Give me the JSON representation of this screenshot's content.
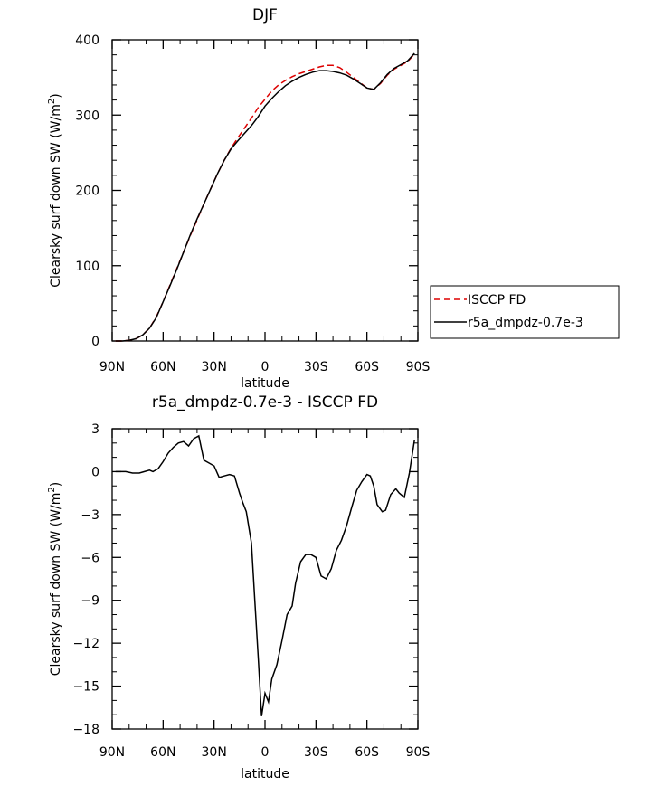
{
  "chart_data": [
    {
      "type": "line",
      "title": "DJF",
      "xlabel": "latitude",
      "ylabel": "Clearsky surf down SW (W/m",
      "ylabel_sup": "2",
      "ylabel_close": ")",
      "xlim": [
        90,
        -90
      ],
      "ylim": [
        0,
        400
      ],
      "xticks": [
        90,
        60,
        30,
        0,
        -30,
        -60,
        -90
      ],
      "xtick_labels": [
        "90N",
        "60N",
        "30N",
        "0",
        "30S",
        "60S",
        "90S"
      ],
      "yticks": [
        0,
        100,
        200,
        300,
        400
      ],
      "ytick_labels": [
        "0",
        "100",
        "200",
        "300",
        "400"
      ],
      "grid": false,
      "legend_position": "right",
      "series": [
        {
          "name": "ISCCP FD",
          "color": "#dd0000",
          "dash": "dashed",
          "x": [
            88,
            84,
            80,
            76,
            72,
            68,
            64,
            60,
            56,
            52,
            48,
            44,
            40,
            36,
            32,
            28,
            24,
            20,
            16,
            12,
            8,
            4,
            0,
            -4,
            -8,
            -12,
            -16,
            -20,
            -24,
            -28,
            -32,
            -36,
            -40,
            -44,
            -48,
            -52,
            -56,
            -60,
            -64,
            -68,
            -72,
            -76,
            -80,
            -84,
            -88
          ],
          "y": [
            0,
            0,
            1,
            3,
            8,
            17,
            32,
            52,
            74,
            96,
            118,
            140,
            161,
            182,
            202,
            222,
            240,
            256,
            270,
            283,
            296,
            310,
            321,
            332,
            340,
            346,
            351,
            355,
            358,
            361,
            364,
            366,
            366,
            363,
            357,
            350,
            343,
            336,
            334,
            342,
            353,
            361,
            366,
            371,
            381
          ]
        },
        {
          "name": "r5a_dmpdz-0.7e-3",
          "color": "#000000",
          "dash": "solid",
          "x": [
            88,
            84,
            80,
            76,
            72,
            68,
            64,
            60,
            56,
            52,
            48,
            44,
            40,
            36,
            32,
            28,
            24,
            20,
            16,
            12,
            8,
            4,
            0,
            -4,
            -8,
            -12,
            -16,
            -20,
            -24,
            -28,
            -32,
            -36,
            -40,
            -44,
            -48,
            -52,
            -56,
            -60,
            -64,
            -68,
            -72,
            -76,
            -80,
            -84,
            -88
          ],
          "y": [
            0,
            0,
            1,
            3,
            8,
            17,
            31,
            52,
            73,
            95,
            118,
            141,
            162,
            182,
            202,
            222,
            240,
            255,
            266,
            276,
            286,
            298,
            312,
            322,
            331,
            339,
            345,
            350,
            354,
            357,
            359,
            359,
            358,
            356,
            353,
            348,
            342,
            336,
            334,
            343,
            354,
            362,
            367,
            372,
            382
          ]
        }
      ]
    },
    {
      "type": "line",
      "title": "r5a_dmpdz-0.7e-3 - ISCCP FD",
      "xlabel": "latitude",
      "ylabel": "Clearsky surf down SW (W/m",
      "ylabel_sup": "2",
      "ylabel_close": ")",
      "xlim": [
        90,
        -90
      ],
      "ylim": [
        -18,
        3
      ],
      "xticks": [
        90,
        60,
        30,
        0,
        -30,
        -60,
        -90
      ],
      "xtick_labels": [
        "90N",
        "60N",
        "30N",
        "0",
        "30S",
        "60S",
        "90S"
      ],
      "yticks": [
        3,
        0,
        -3,
        -6,
        -9,
        -12,
        -15,
        -18
      ],
      "ytick_labels": [
        "3",
        "0",
        "−3",
        "−6",
        "−9",
        "−12",
        "−15",
        "−18"
      ],
      "grid": false,
      "series": [
        {
          "name": "",
          "color": "#000000",
          "dash": "solid",
          "x": [
            88,
            82,
            78,
            74,
            71,
            68,
            66,
            63,
            60,
            57,
            54,
            51,
            48,
            45,
            42,
            39,
            36,
            33,
            30,
            27,
            24,
            21,
            18,
            15,
            13,
            11,
            8,
            6,
            4,
            2,
            0,
            -2,
            -4,
            -7,
            -10,
            -13,
            -16,
            -18,
            -21,
            -24,
            -27,
            -30,
            -33,
            -36,
            -39,
            -42,
            -45,
            -48,
            -51,
            -54,
            -57,
            -60,
            -62,
            -64,
            -66,
            -69,
            -71,
            -74,
            -77,
            -79,
            -82,
            -85,
            -88
          ],
          "y": [
            0,
            0,
            -0.1,
            -0.1,
            0,
            0.1,
            0,
            0.2,
            0.7,
            1.3,
            1.7,
            2.0,
            2.1,
            1.8,
            2.3,
            2.5,
            0.8,
            0.6,
            0.4,
            -0.4,
            -0.3,
            -0.2,
            -0.3,
            -1.5,
            -2.2,
            -2.8,
            -5.0,
            -9.0,
            -13.0,
            -17.1,
            -15.5,
            -16.1,
            -14.5,
            -13.5,
            -11.8,
            -10.0,
            -9.4,
            -7.8,
            -6.3,
            -5.8,
            -5.8,
            -6.0,
            -7.3,
            -7.5,
            -6.8,
            -5.5,
            -4.8,
            -3.8,
            -2.5,
            -1.3,
            -0.7,
            -0.2,
            -0.3,
            -1.0,
            -2.3,
            -2.8,
            -2.7,
            -1.6,
            -1.2,
            -1.5,
            -1.8,
            -0.1,
            2.2
          ]
        }
      ]
    }
  ]
}
